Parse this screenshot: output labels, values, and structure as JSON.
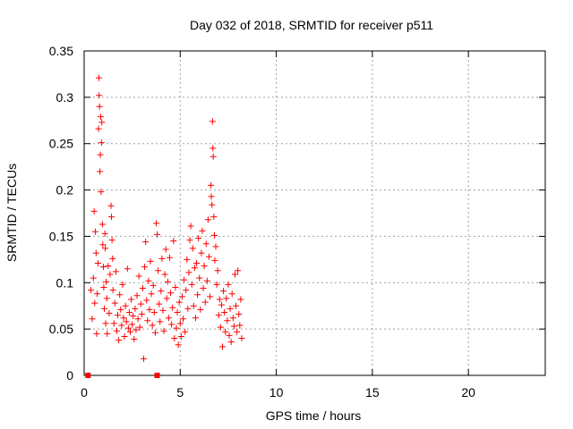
{
  "chart_data": {
    "type": "scatter",
    "title": "Day 032 of 2018, SRMTID for receiver p511",
    "xlabel": "GPS time / hours",
    "ylabel": "SRMTID / TECUs",
    "xlim": [
      0,
      24
    ],
    "ylim": [
      0,
      0.35
    ],
    "x_ticks": [
      0,
      5,
      10,
      15,
      20
    ],
    "x_tick_labels": [
      "0",
      "5",
      "10",
      "15",
      "20"
    ],
    "y_ticks": [
      0,
      0.05,
      0.1,
      0.15,
      0.2,
      0.25,
      0.3,
      0.35
    ],
    "y_tick_labels": [
      "0",
      "0.05",
      "0.1",
      "0.15",
      "0.2",
      "0.25",
      "0.3",
      "0.35"
    ],
    "grid": true,
    "color": "#ff0000",
    "marker": "+",
    "series": [
      {
        "name": "SRMTID",
        "points": [
          [
            0.35,
            0.092
          ],
          [
            0.42,
            0.061
          ],
          [
            0.48,
            0.105
          ],
          [
            0.52,
            0.177
          ],
          [
            0.55,
            0.078
          ],
          [
            0.58,
            0.155
          ],
          [
            0.62,
            0.132
          ],
          [
            0.65,
            0.045
          ],
          [
            0.68,
            0.088
          ],
          [
            0.72,
            0.121
          ],
          [
            0.75,
            0.266
          ],
          [
            0.77,
            0.321
          ],
          [
            0.78,
            0.302
          ],
          [
            0.8,
            0.29
          ],
          [
            0.82,
            0.22
          ],
          [
            0.84,
            0.238
          ],
          [
            0.86,
            0.279
          ],
          [
            0.88,
            0.198
          ],
          [
            0.9,
            0.251
          ],
          [
            0.92,
            0.273
          ],
          [
            0.95,
            0.163
          ],
          [
            0.97,
            0.141
          ],
          [
            1.0,
            0.117
          ],
          [
            1.02,
            0.095
          ],
          [
            1.05,
            0.072
          ],
          [
            1.08,
            0.153
          ],
          [
            1.1,
            0.137
          ],
          [
            1.12,
            0.056
          ],
          [
            1.15,
            0.101
          ],
          [
            1.18,
            0.083
          ],
          [
            1.2,
            0.045
          ],
          [
            1.25,
            0.118
          ],
          [
            1.3,
            0.067
          ],
          [
            1.35,
            0.109
          ],
          [
            1.4,
            0.183
          ],
          [
            1.42,
            0.171
          ],
          [
            1.45,
            0.146
          ],
          [
            1.48,
            0.126
          ],
          [
            1.5,
            0.092
          ],
          [
            1.55,
            0.056
          ],
          [
            1.6,
            0.078
          ],
          [
            1.65,
            0.112
          ],
          [
            1.7,
            0.048
          ],
          [
            1.75,
            0.065
          ],
          [
            1.8,
            0.038
          ],
          [
            1.85,
            0.087
          ],
          [
            1.9,
            0.071
          ],
          [
            1.95,
            0.054
          ],
          [
            2.0,
            0.098
          ],
          [
            2.05,
            0.062
          ],
          [
            2.1,
            0.042
          ],
          [
            2.15,
            0.075
          ],
          [
            2.2,
            0.058
          ],
          [
            2.25,
            0.115
          ],
          [
            2.3,
            0.051
          ],
          [
            2.35,
            0.068
          ],
          [
            2.4,
            0.047
          ],
          [
            2.45,
            0.082
          ],
          [
            2.5,
            0.055
          ],
          [
            2.55,
            0.064
          ],
          [
            2.6,
            0.039
          ],
          [
            2.65,
            0.072
          ],
          [
            2.7,
            0.049
          ],
          [
            2.75,
            0.086
          ],
          [
            2.8,
            0.061
          ],
          [
            2.85,
            0.107
          ],
          [
            2.9,
            0.052
          ],
          [
            2.95,
            0.077
          ],
          [
            3.0,
            0.066
          ],
          [
            3.05,
            0.094
          ],
          [
            3.1,
            0.018
          ],
          [
            3.15,
            0.117
          ],
          [
            3.2,
            0.144
          ],
          [
            3.25,
            0.081
          ],
          [
            3.3,
            0.059
          ],
          [
            3.35,
            0.102
          ],
          [
            3.4,
            0.071
          ],
          [
            3.45,
            0.123
          ],
          [
            3.5,
            0.088
          ],
          [
            3.55,
            0.054
          ],
          [
            3.6,
            0.097
          ],
          [
            3.65,
            0.068
          ],
          [
            3.7,
            0.046
          ],
          [
            3.75,
            0.164
          ],
          [
            3.8,
            0.152
          ],
          [
            3.85,
            0.113
          ],
          [
            3.9,
            0.077
          ],
          [
            3.95,
            0.058
          ],
          [
            4.0,
            0.091
          ],
          [
            4.05,
            0.126
          ],
          [
            4.1,
            0.07
          ],
          [
            4.15,
            0.048
          ],
          [
            4.2,
            0.109
          ],
          [
            4.25,
            0.136
          ],
          [
            4.3,
            0.083
          ],
          [
            4.35,
            0.101
          ],
          [
            4.4,
            0.062
          ],
          [
            4.45,
            0.127
          ],
          [
            4.5,
            0.089
          ],
          [
            4.55,
            0.055
          ],
          [
            4.6,
            0.073
          ],
          [
            4.65,
            0.145
          ],
          [
            4.7,
            0.04
          ],
          [
            4.75,
            0.095
          ],
          [
            4.8,
            0.051
          ],
          [
            4.85,
            0.068
          ],
          [
            4.9,
            0.033
          ],
          [
            4.95,
            0.079
          ],
          [
            5.0,
            0.056
          ],
          [
            5.05,
            0.042
          ],
          [
            5.1,
            0.085
          ],
          [
            5.15,
            0.061
          ],
          [
            5.2,
            0.103
          ],
          [
            5.25,
            0.047
          ],
          [
            5.3,
            0.092
          ],
          [
            5.35,
            0.125
          ],
          [
            5.4,
            0.072
          ],
          [
            5.45,
            0.111
          ],
          [
            5.5,
            0.146
          ],
          [
            5.55,
            0.161
          ],
          [
            5.6,
            0.098
          ],
          [
            5.65,
            0.137
          ],
          [
            5.7,
            0.075
          ],
          [
            5.75,
            0.116
          ],
          [
            5.8,
            0.062
          ],
          [
            5.85,
            0.121
          ],
          [
            5.9,
            0.087
          ],
          [
            5.95,
            0.148
          ],
          [
            6.0,
            0.105
          ],
          [
            6.05,
            0.071
          ],
          [
            6.1,
            0.132
          ],
          [
            6.15,
            0.156
          ],
          [
            6.2,
            0.094
          ],
          [
            6.25,
            0.118
          ],
          [
            6.3,
            0.079
          ],
          [
            6.35,
            0.142
          ],
          [
            6.4,
            0.102
          ],
          [
            6.45,
            0.168
          ],
          [
            6.5,
            0.128
          ],
          [
            6.55,
            0.085
          ],
          [
            6.6,
            0.205
          ],
          [
            6.62,
            0.193
          ],
          [
            6.65,
            0.184
          ],
          [
            6.68,
            0.274
          ],
          [
            6.7,
            0.245
          ],
          [
            6.72,
            0.236
          ],
          [
            6.75,
            0.171
          ],
          [
            6.78,
            0.151
          ],
          [
            6.8,
            0.124
          ],
          [
            6.85,
            0.139
          ],
          [
            6.9,
            0.098
          ],
          [
            6.95,
            0.113
          ],
          [
            7.0,
            0.065
          ],
          [
            7.05,
            0.082
          ],
          [
            7.1,
            0.052
          ],
          [
            7.15,
            0.076
          ],
          [
            7.2,
            0.031
          ],
          [
            7.25,
            0.091
          ],
          [
            7.3,
            0.068
          ],
          [
            7.35,
            0.047
          ],
          [
            7.4,
            0.083
          ],
          [
            7.45,
            0.059
          ],
          [
            7.5,
            0.098
          ],
          [
            7.55,
            0.043
          ],
          [
            7.6,
            0.072
          ],
          [
            7.65,
            0.036
          ],
          [
            7.7,
            0.088
          ],
          [
            7.75,
            0.062
          ],
          [
            7.8,
            0.053
          ],
          [
            7.85,
            0.109
          ],
          [
            7.9,
            0.075
          ],
          [
            7.95,
            0.047
          ],
          [
            8.0,
            0.113
          ],
          [
            8.05,
            0.066
          ],
          [
            8.1,
            0.054
          ],
          [
            8.15,
            0.082
          ],
          [
            8.2,
            0.04
          ]
        ]
      }
    ],
    "filled_markers": [
      [
        0.2,
        0
      ],
      [
        3.8,
        0
      ]
    ]
  }
}
